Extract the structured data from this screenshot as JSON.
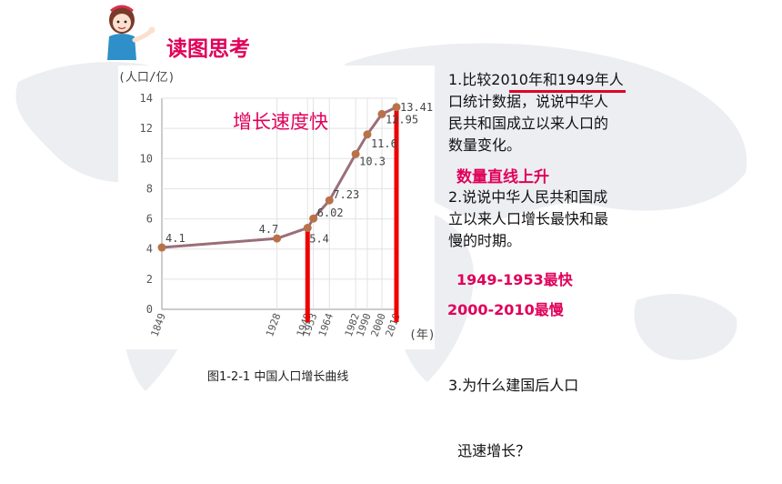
{
  "slide": {
    "title": "读图思考",
    "annotation": "增长速度快",
    "caption": "图1-2-1  中国人口增长曲线",
    "questions": [
      {
        "lines": [
          "1.比较2010年和1949年人",
          "口统计数据，说说中华人",
          "民共和国成立以来人口的",
          "数量变化。"
        ]
      },
      {
        "lines": [
          "2.说说中华人民共和国成",
          "立以来人口增长最快和最",
          "慢的时期。"
        ]
      },
      {
        "lines": [
          "3.为什么建国后人口",
          "  迅速增长？"
        ]
      }
    ],
    "answers": {
      "a1": "数量直线上升",
      "a2_fast": "1949-1953最快",
      "a2_slow": "2000-2010最慢"
    }
  },
  "chart_data": {
    "type": "line",
    "ylabel": "(人口/亿)",
    "xlabel": "(年)",
    "ylim": [
      0,
      14
    ],
    "yticks": [
      "0",
      "2",
      "4",
      "6",
      "8",
      "10",
      "12",
      "14"
    ],
    "x": [
      "1849",
      "1928",
      "1949",
      "1953",
      "1964",
      "1982",
      "1990",
      "2000",
      "2010"
    ],
    "values": [
      4.1,
      4.7,
      5.4,
      6.02,
      7.23,
      10.3,
      11.6,
      12.95,
      13.41
    ],
    "labels": [
      "4.1",
      "4.7",
      "5.4",
      "6.02",
      "7.23",
      "10.3",
      "11.6",
      "12.95",
      "13.41"
    ],
    "highlight_years": [
      "1949",
      "2010"
    ],
    "colors": {
      "line": "#9a6e78",
      "marker": "#b8724a",
      "highlight": "#ee0000"
    }
  }
}
